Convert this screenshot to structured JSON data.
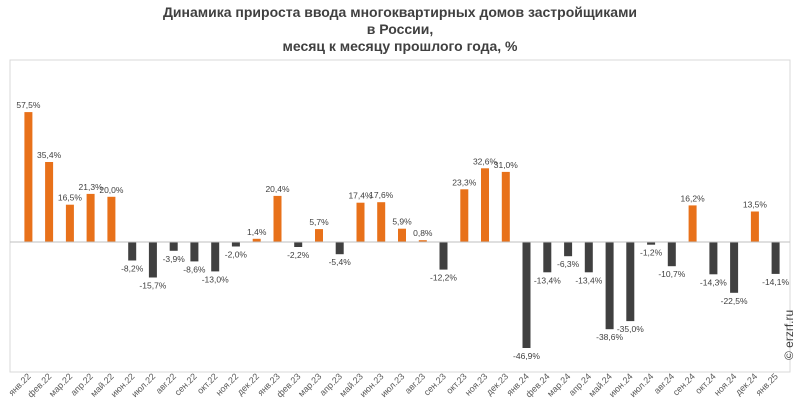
{
  "chart_data": {
    "type": "bar",
    "title_lines": [
      "Динамика прироста ввода многоквартирных домов застройщиками",
      "в России,",
      "месяц к месяцу прошлого года, %"
    ],
    "categories": [
      "янв.22",
      "фев.22",
      "мар.22",
      "апр.22",
      "май.22",
      "июн.22",
      "июл.22",
      "авг.22",
      "сен.22",
      "окт.22",
      "ноя.22",
      "дек.22",
      "янв.23",
      "фев.23",
      "мар.23",
      "апр.23",
      "май.23",
      "июн.23",
      "июл.23",
      "авг.23",
      "сен.23",
      "окт.23",
      "ноя.23",
      "дек.23",
      "янв.24",
      "фев.24",
      "мар.24",
      "апр.24",
      "май.24",
      "июн.24",
      "июл.24",
      "авг.24",
      "сен.24",
      "окт.24",
      "ноя.24",
      "дек.24",
      "янв.25"
    ],
    "values": [
      57.5,
      35.4,
      16.5,
      21.3,
      20.0,
      -8.2,
      -15.7,
      -3.9,
      -8.6,
      -13.0,
      -2.0,
      1.4,
      20.4,
      -2.2,
      5.7,
      -5.4,
      17.4,
      17.6,
      5.9,
      0.8,
      -12.2,
      23.3,
      32.6,
      31.0,
      -46.9,
      -13.4,
      -6.3,
      -13.4,
      -38.6,
      -35.0,
      -1.2,
      -10.7,
      16.2,
      -14.3,
      -22.5,
      13.5,
      -14.1
    ],
    "labels": [
      "57,5%",
      "35,4%",
      "16,5%",
      "21,3%",
      "20,0%",
      "-8,2%",
      "-15,7%",
      "-3,9%",
      "-8,6%",
      "-13,0%",
      "-2,0%",
      "1,4%",
      "20,4%",
      "-2,2%",
      "5,7%",
      "-5,4%",
      "17,4%",
      "17,6%",
      "5,9%",
      "0,8%",
      "-12,2%",
      "23,3%",
      "32,6%",
      "31,0%",
      "-46,9%",
      "-13,4%",
      "-6,3%",
      "-13,4%",
      "-38,6%",
      "-35,0%",
      "-1,2%",
      "-10,7%",
      "16,2%",
      "-14,3%",
      "-22,5%",
      "13,5%",
      "-14,1%"
    ],
    "colors": {
      "positive": "#E8711A",
      "negative": "#404040"
    },
    "ylim": [
      -58,
      60
    ],
    "grid": false,
    "legend": "none"
  },
  "watermark": "© erzrf.ru"
}
